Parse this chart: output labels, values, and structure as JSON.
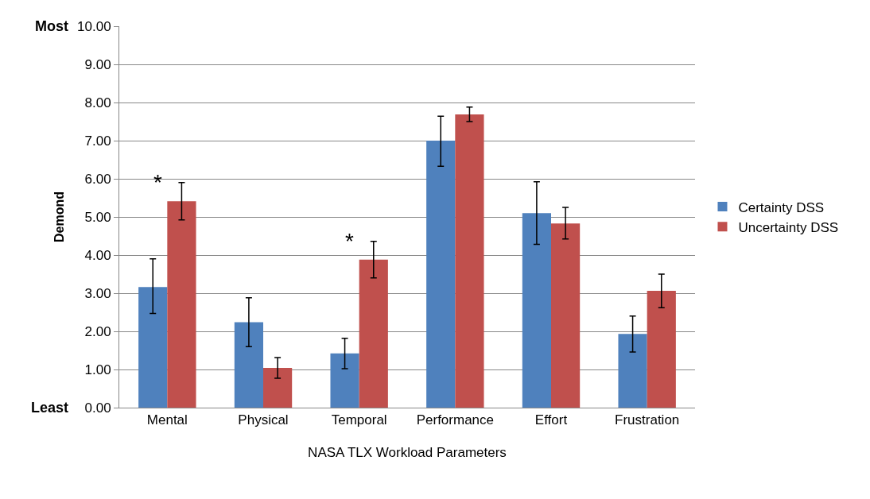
{
  "chart_data": {
    "type": "bar",
    "xlabel": "NASA TLX Workload Parameters",
    "ylabel": "Demond",
    "categories": [
      "Mental",
      "Physical",
      "Temporal",
      "Performance",
      "Effort",
      "Frustration"
    ],
    "series": [
      {
        "name": "Certainty DSS",
        "color": "#4f81bd",
        "values": [
          3.16,
          2.24,
          1.42,
          7.0,
          5.1,
          1.93
        ],
        "errors": [
          [
            2.47,
            3.9
          ],
          [
            1.6,
            2.88
          ],
          [
            1.02,
            1.82
          ],
          [
            6.33,
            7.64
          ],
          [
            4.28,
            5.92
          ],
          [
            1.46,
            2.4
          ]
        ]
      },
      {
        "name": "Uncertainty DSS",
        "color": "#c0504d",
        "values": [
          5.41,
          1.04,
          3.88,
          7.69,
          4.83,
          3.06
        ],
        "errors": [
          [
            4.92,
            5.9
          ],
          [
            0.77,
            1.31
          ],
          [
            3.4,
            4.36
          ],
          [
            7.5,
            7.88
          ],
          [
            4.42,
            5.25
          ],
          [
            2.62,
            3.5
          ]
        ]
      }
    ],
    "ylim": [
      0,
      10
    ],
    "yticks": [
      {
        "value": 0,
        "label": "0.00"
      },
      {
        "value": 1,
        "label": "1.00"
      },
      {
        "value": 2,
        "label": "2.00"
      },
      {
        "value": 3,
        "label": "3.00"
      },
      {
        "value": 4,
        "label": "4.00"
      },
      {
        "value": 5,
        "label": "5.00"
      },
      {
        "value": 6,
        "label": "6.00"
      },
      {
        "value": 7,
        "label": "7.00"
      },
      {
        "value": 8,
        "label": "8.00"
      },
      {
        "value": 9,
        "label": "9.00"
      },
      {
        "value": 10,
        "label": "10.00"
      }
    ],
    "grid": "y",
    "legend": "right",
    "annotations": [
      "Most",
      "Least",
      "*",
      "*"
    ]
  }
}
